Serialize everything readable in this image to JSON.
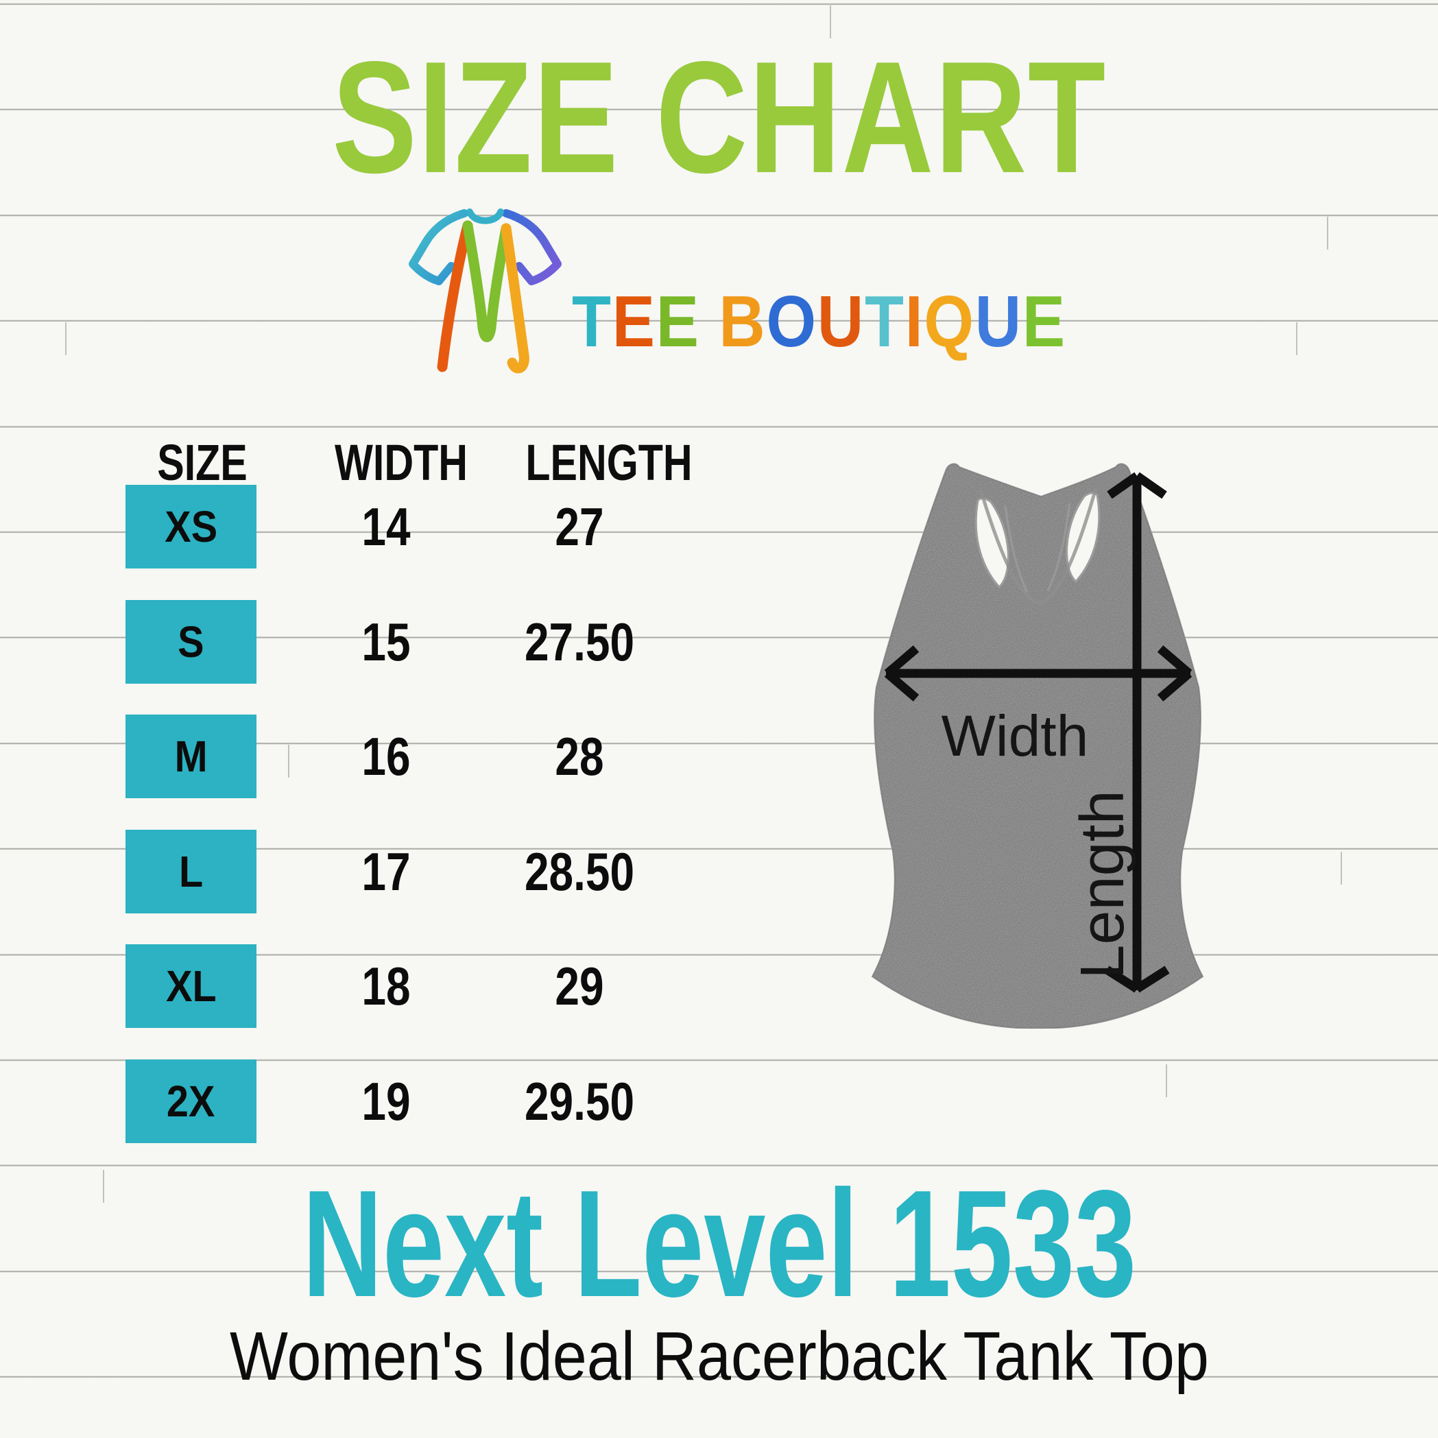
{
  "title": {
    "text": "SIZE CHART",
    "color": "#98ca3c"
  },
  "logo": {
    "icon_name": "tee-boutique-tshirt-logo-icon",
    "brand": "TEE BOUTIQUE",
    "letters": [
      {
        "ch": "T",
        "color": "#2fb4c4"
      },
      {
        "ch": "E",
        "color": "#e1560a"
      },
      {
        "ch": "E",
        "color": "#79b829"
      },
      {
        "ch": " ",
        "color": ""
      },
      {
        "ch": "B",
        "color": "#f0991b"
      },
      {
        "ch": "O",
        "color": "#2e6bd3"
      },
      {
        "ch": "U",
        "color": "#e0590e"
      },
      {
        "ch": "T",
        "color": "#57c2cd"
      },
      {
        "ch": "I",
        "color": "#ec7b13"
      },
      {
        "ch": "Q",
        "color": "#f2a71c"
      },
      {
        "ch": "U",
        "color": "#3f7bdc"
      },
      {
        "ch": "E",
        "color": "#7cc230"
      }
    ]
  },
  "table": {
    "headers": [
      "SIZE",
      "WIDTH",
      "LENGTH"
    ],
    "size_cell_color": "#2cb2c2",
    "rows": [
      {
        "size": "XS",
        "width": "14",
        "length": "27"
      },
      {
        "size": "S",
        "width": "15",
        "length": "27.50"
      },
      {
        "size": "M",
        "width": "16",
        "length": "28"
      },
      {
        "size": "L",
        "width": "17",
        "length": "28.50"
      },
      {
        "size": "XL",
        "width": "18",
        "length": "29"
      },
      {
        "size": "2X",
        "width": "19",
        "length": "29.50"
      }
    ]
  },
  "figure": {
    "width_label": "Width",
    "length_label": "Length"
  },
  "product": {
    "model": "Next Level 1533",
    "model_color": "#29b5c3",
    "name": "Women's Ideal Racerback Tank Top"
  },
  "chart_data": {
    "type": "table",
    "title": "SIZE CHART",
    "columns": [
      "SIZE",
      "WIDTH",
      "LENGTH"
    ],
    "rows": [
      [
        "XS",
        14,
        27
      ],
      [
        "S",
        15,
        27.5
      ],
      [
        "M",
        16,
        28
      ],
      [
        "L",
        17,
        28.5
      ],
      [
        "XL",
        18,
        29
      ],
      [
        "2X",
        19,
        29.5
      ]
    ]
  }
}
